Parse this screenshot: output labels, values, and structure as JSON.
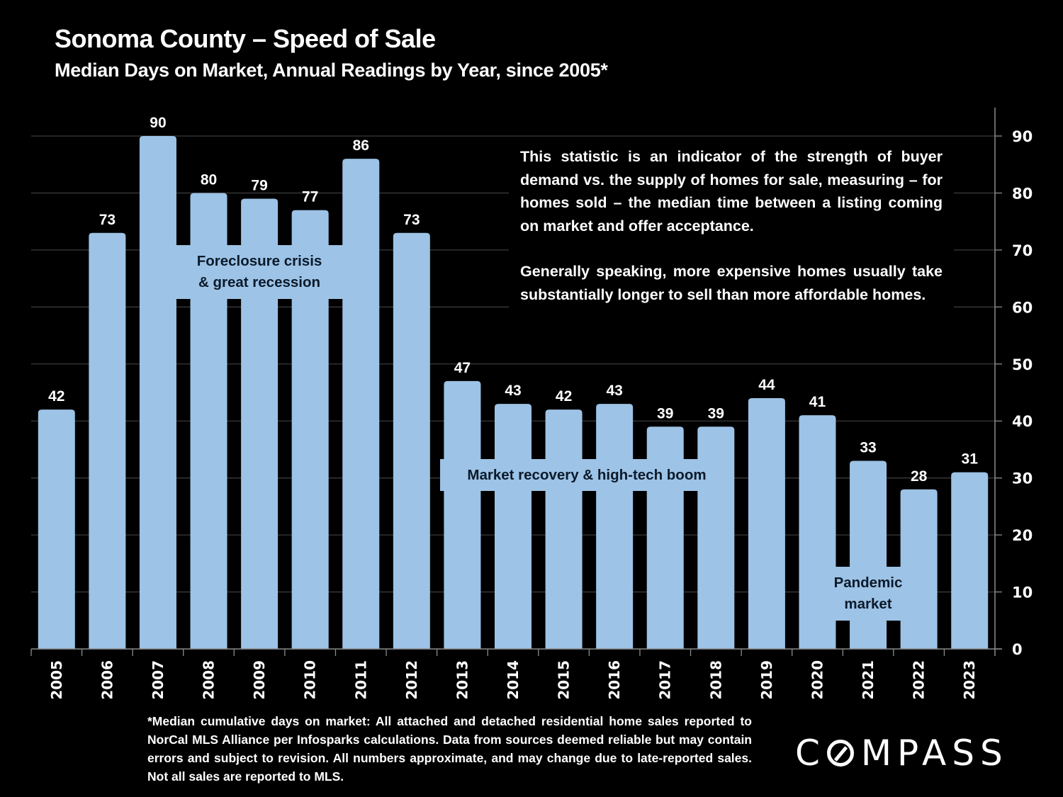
{
  "header": {
    "title": "Sonoma County – Speed of Sale",
    "subtitle": "Median Days on Market, Annual Readings by Year, since 2005*"
  },
  "chart_data": {
    "type": "bar",
    "title": "Sonoma County – Speed of Sale",
    "subtitle": "Median Days on Market, Annual Readings by Year, since 2005*",
    "xlabel": "",
    "ylabel": "",
    "categories": [
      "2005",
      "2006",
      "2007",
      "2008",
      "2009",
      "2010",
      "2011",
      "2012",
      "2013",
      "2014",
      "2015",
      "2016",
      "2017",
      "2018",
      "2019",
      "2020",
      "2021",
      "2022",
      "2023"
    ],
    "values": [
      42,
      73,
      90,
      80,
      79,
      77,
      86,
      73,
      47,
      43,
      42,
      43,
      39,
      39,
      44,
      41,
      33,
      28,
      31
    ],
    "ylim": [
      0,
      95
    ],
    "yticks": [
      0,
      10,
      20,
      30,
      40,
      50,
      60,
      70,
      80,
      90
    ],
    "y_axis_side": "right",
    "grid": true,
    "bar_color": "#9DC3E6",
    "data_labels": true,
    "annotations": [
      {
        "text_lines": [
          "Foreclosure crisis",
          "& great recession"
        ],
        "span": [
          "2008",
          "2011"
        ]
      },
      {
        "text_lines": [
          "Market recovery & high-tech boom"
        ],
        "span": [
          "2013",
          "2018"
        ]
      },
      {
        "text_lines": [
          "Pandemic",
          "market"
        ],
        "span": [
          "2021",
          "2021"
        ]
      }
    ]
  },
  "description": {
    "paragraphs": [
      "This statistic is an indicator of the strength of buyer demand vs. the supply of homes for sale, measuring – for homes sold – the median time between a listing coming on market and offer acceptance.",
      "Generally speaking, more expensive homes usually take substantially longer to sell than more affordable homes."
    ]
  },
  "annotations": {
    "foreclosure": [
      "Foreclosure crisis",
      "& great recession"
    ],
    "recovery": [
      "Market recovery & high-tech boom"
    ],
    "pandemic": [
      "Pandemic",
      "market"
    ]
  },
  "footnote": "*Median cumulative days on market: All attached and detached residential home sales reported to NorCal MLS Alliance per Infosparks calculations. Data from sources deemed reliable but may contain errors and subject to revision. All numbers approximate, and may change due to late-reported sales. Not all sales are reported to MLS.",
  "logo": {
    "prefix": "C",
    "suffix": "MPASS",
    "name": "COMPASS"
  }
}
